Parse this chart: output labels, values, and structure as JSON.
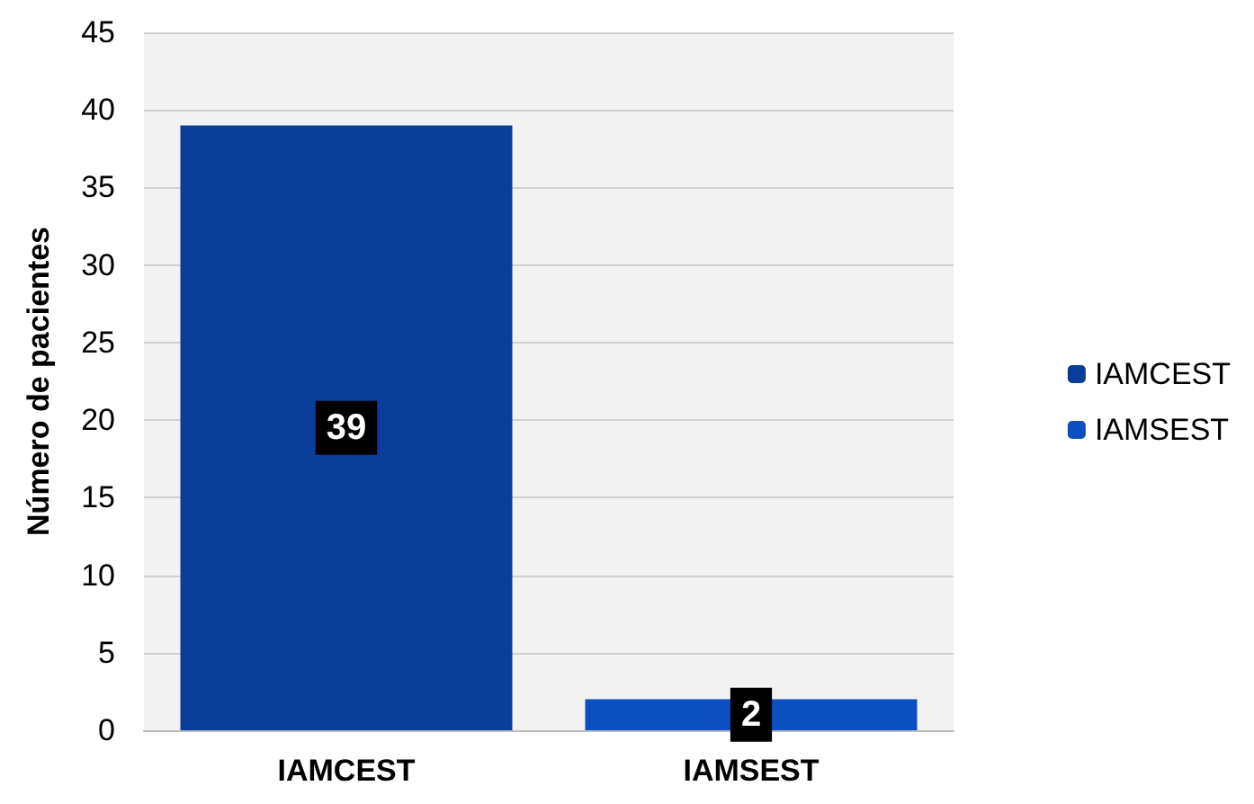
{
  "chart_data": {
    "type": "bar",
    "ylabel": "Número de pacientes",
    "categories": [
      "IAMCEST",
      "IAMSEST"
    ],
    "series": [
      {
        "name": "IAMCEST",
        "color": "#0a3d9a",
        "values": [
          39,
          null
        ]
      },
      {
        "name": "IAMSEST",
        "color": "#0b4fc0",
        "values": [
          null,
          2
        ]
      }
    ],
    "stacked": true,
    "ylim": [
      0,
      45
    ],
    "yticks": [
      0,
      5,
      10,
      15,
      20,
      25,
      30,
      35,
      40,
      45
    ],
    "grid": "y",
    "legend": "right",
    "data_labels": true
  }
}
